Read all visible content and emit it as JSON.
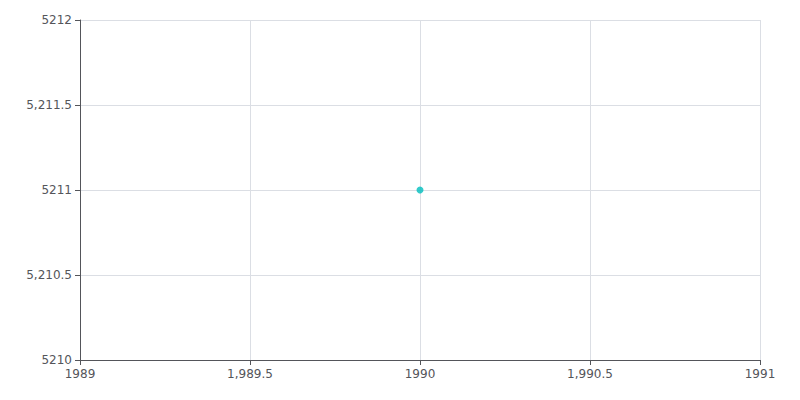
{
  "chart_data": {
    "type": "scatter",
    "x": [
      1990
    ],
    "values": [
      5211
    ],
    "color": "#00BEBE",
    "marker": "circle",
    "xlim": [
      1989,
      1991
    ],
    "ylim": [
      5210,
      5212
    ],
    "xticks": [
      1989,
      {
        "value": 1989.5,
        "label": "1,989.5"
      },
      1990,
      {
        "value": 1990.5,
        "label": "1,990.5"
      },
      1991
    ],
    "yticks": [
      5210,
      {
        "value": 5210.5,
        "label": "5,210.5"
      },
      5211,
      {
        "value": 5211.5,
        "label": "5,211.5"
      },
      5212
    ],
    "grid": true
  }
}
